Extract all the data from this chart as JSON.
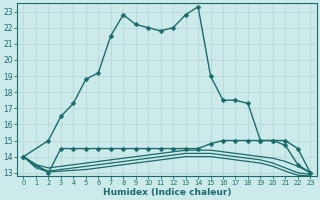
{
  "xlabel": "Humidex (Indice chaleur)",
  "xlim": [
    -0.5,
    23.5
  ],
  "ylim": [
    12.8,
    23.5
  ],
  "yticks": [
    13,
    14,
    15,
    16,
    17,
    18,
    19,
    20,
    21,
    22,
    23
  ],
  "xticks": [
    0,
    1,
    2,
    3,
    4,
    5,
    6,
    7,
    8,
    9,
    10,
    11,
    12,
    13,
    14,
    15,
    16,
    17,
    18,
    19,
    20,
    21,
    22,
    23
  ],
  "bg_color": "#cdeaea",
  "line_color": "#1a6b6b",
  "grid_color": "#b8d8d8",
  "lines": [
    {
      "x": [
        0,
        2,
        3,
        4,
        5,
        6,
        7,
        8,
        9,
        10,
        11,
        12,
        13,
        14,
        15,
        16,
        17,
        18,
        19,
        20,
        21,
        22,
        23
      ],
      "y": [
        14.0,
        15.0,
        16.5,
        17.3,
        18.8,
        19.2,
        21.5,
        22.8,
        22.2,
        22.0,
        21.8,
        22.0,
        22.8,
        23.3,
        19.0,
        17.5,
        17.5,
        17.3,
        15.0,
        15.0,
        14.7,
        13.5,
        13.0
      ],
      "marker": "D",
      "markersize": 2.5,
      "linewidth": 1.0,
      "has_marker": true
    },
    {
      "x": [
        0,
        2,
        3,
        4,
        5,
        6,
        7,
        8,
        9,
        10,
        11,
        12,
        13,
        14,
        15,
        16,
        17,
        18,
        19,
        20,
        21,
        22,
        23
      ],
      "y": [
        14.0,
        13.0,
        14.5,
        14.5,
        14.5,
        14.5,
        14.5,
        14.5,
        14.5,
        14.5,
        14.5,
        14.5,
        14.5,
        14.5,
        14.8,
        15.0,
        15.0,
        15.0,
        15.0,
        15.0,
        15.0,
        14.5,
        13.0
      ],
      "marker": "D",
      "markersize": 2.5,
      "linewidth": 1.0,
      "has_marker": true
    },
    {
      "x": [
        0,
        1,
        2,
        3,
        4,
        5,
        6,
        7,
        8,
        9,
        10,
        11,
        12,
        13,
        14,
        15,
        16,
        17,
        18,
        19,
        20,
        21,
        22,
        23
      ],
      "y": [
        14.0,
        13.5,
        13.3,
        13.4,
        13.5,
        13.6,
        13.7,
        13.8,
        13.9,
        14.0,
        14.1,
        14.2,
        14.3,
        14.4,
        14.4,
        14.4,
        14.3,
        14.2,
        14.1,
        14.0,
        13.9,
        13.7,
        13.4,
        13.0
      ],
      "marker": null,
      "markersize": 0,
      "linewidth": 0.9,
      "has_marker": false
    },
    {
      "x": [
        0,
        1,
        2,
        3,
        4,
        5,
        6,
        7,
        8,
        9,
        10,
        11,
        12,
        13,
        14,
        15,
        16,
        17,
        18,
        19,
        20,
        21,
        22,
        23
      ],
      "y": [
        14.0,
        13.4,
        13.1,
        13.2,
        13.3,
        13.4,
        13.5,
        13.6,
        13.7,
        13.8,
        13.9,
        14.0,
        14.1,
        14.2,
        14.2,
        14.2,
        14.1,
        14.0,
        13.9,
        13.8,
        13.6,
        13.3,
        13.0,
        12.9
      ],
      "marker": null,
      "markersize": 0,
      "linewidth": 0.9,
      "has_marker": false
    },
    {
      "x": [
        0,
        1,
        2,
        3,
        4,
        5,
        6,
        7,
        8,
        9,
        10,
        11,
        12,
        13,
        14,
        15,
        16,
        17,
        18,
        19,
        20,
        21,
        22,
        23
      ],
      "y": [
        14.0,
        13.3,
        13.05,
        13.1,
        13.15,
        13.2,
        13.3,
        13.4,
        13.5,
        13.6,
        13.7,
        13.8,
        13.9,
        14.0,
        14.0,
        14.0,
        13.9,
        13.8,
        13.7,
        13.6,
        13.4,
        13.1,
        12.85,
        12.8
      ],
      "marker": null,
      "markersize": 0,
      "linewidth": 0.9,
      "has_marker": false
    }
  ]
}
